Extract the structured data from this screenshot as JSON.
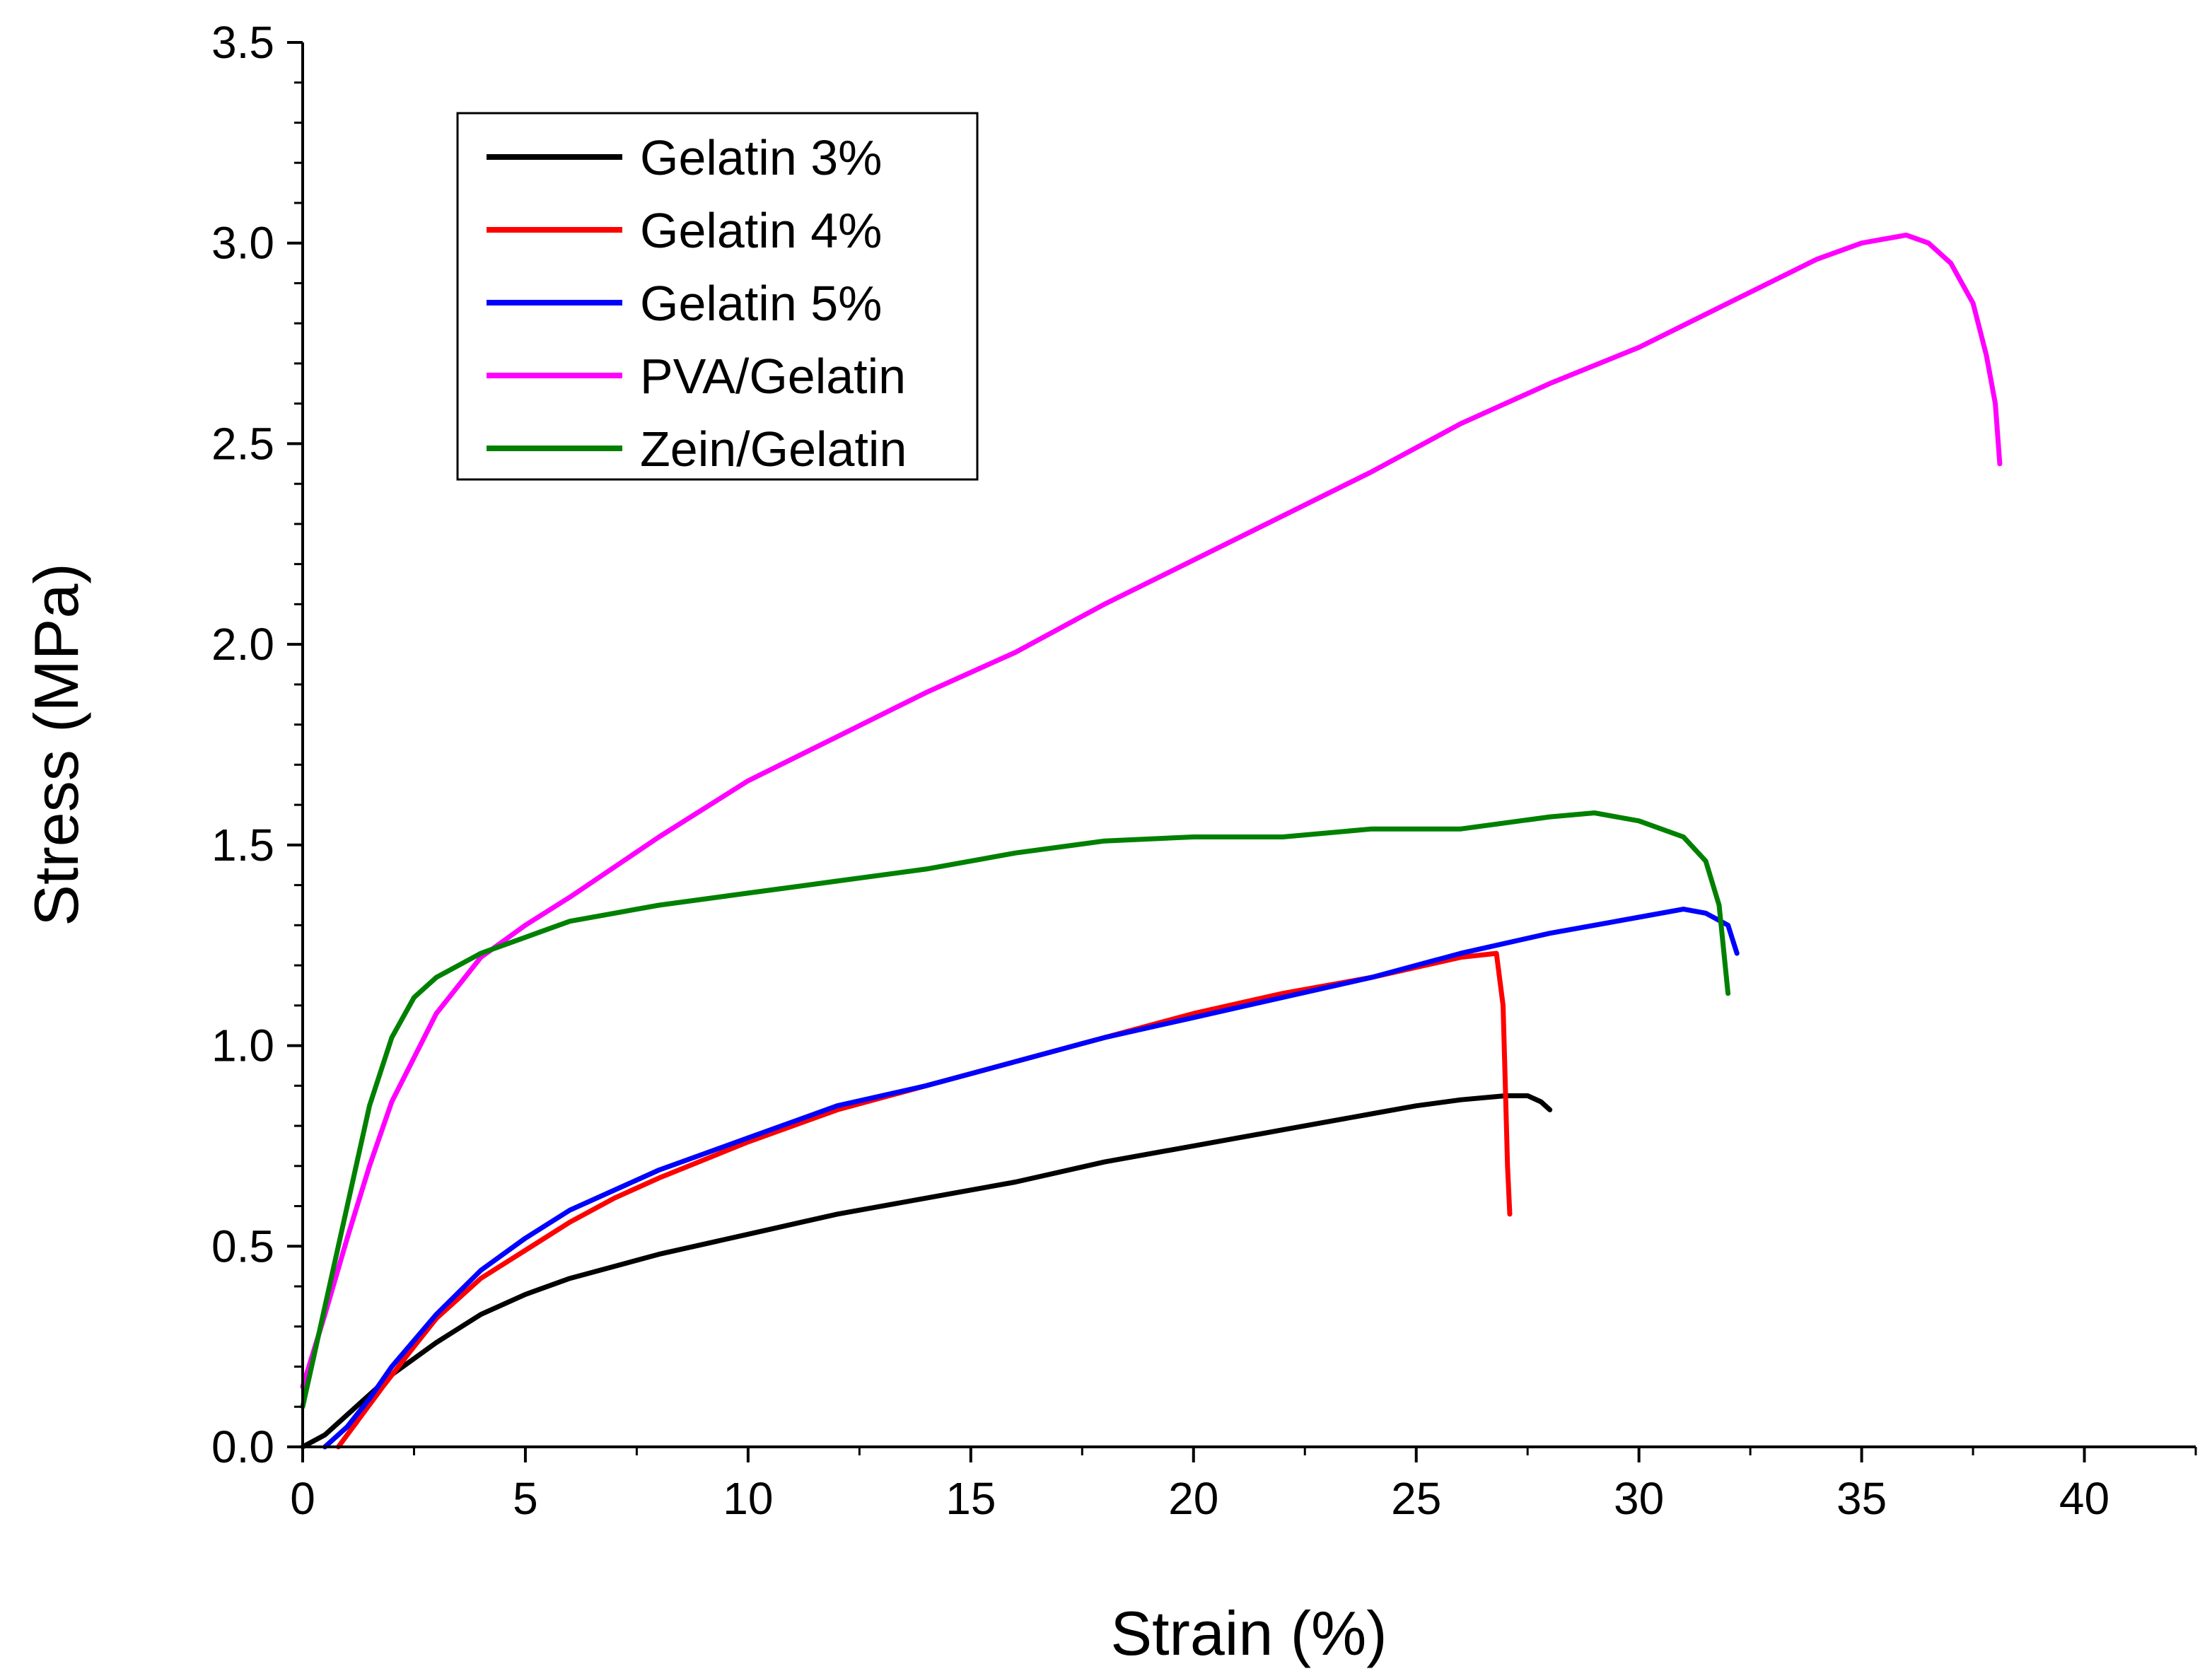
{
  "chart_data": {
    "type": "line",
    "title": "",
    "xlabel": "Strain (%)",
    "ylabel": "Stress (MPa)",
    "xlim": [
      0,
      42.5
    ],
    "ylim": [
      0,
      3.5
    ],
    "xticks": [
      0,
      5,
      10,
      15,
      20,
      25,
      30,
      35,
      40
    ],
    "xtick_labels": [
      "0",
      "5",
      "10",
      "15",
      "20",
      "25",
      "30",
      "35",
      "40"
    ],
    "yticks": [
      0,
      0.5,
      1.0,
      1.5,
      2.0,
      2.5,
      3.0,
      3.5
    ],
    "ytick_labels": [
      "0.0",
      "0.5",
      "1.0",
      "1.5",
      "2.0",
      "2.5",
      "3.0",
      "3.5"
    ],
    "grid": false,
    "legend_position": "top-left",
    "series": [
      {
        "name": "Gelatin 3%",
        "color": "#000000",
        "x": [
          0,
          0.5,
          1,
          1.5,
          2,
          3,
          4,
          5,
          6,
          8,
          10,
          12,
          14,
          16,
          18,
          20,
          22,
          24,
          25,
          26,
          27,
          27.5,
          27.8,
          28
        ],
        "y": [
          0,
          0.03,
          0.08,
          0.13,
          0.18,
          0.26,
          0.33,
          0.38,
          0.42,
          0.48,
          0.53,
          0.58,
          0.62,
          0.66,
          0.71,
          0.75,
          0.79,
          0.83,
          0.85,
          0.865,
          0.875,
          0.875,
          0.86,
          0.84
        ]
      },
      {
        "name": "Gelatin 4%",
        "color": "#ff0000",
        "x": [
          0.8,
          1.2,
          1.8,
          2.5,
          3,
          4,
          5,
          6,
          7,
          8,
          10,
          12,
          14,
          16,
          18,
          20,
          22,
          24,
          26,
          26.8,
          26.95,
          27,
          27.05,
          27.1
        ],
        "y": [
          0,
          0.06,
          0.15,
          0.25,
          0.32,
          0.42,
          0.49,
          0.56,
          0.62,
          0.67,
          0.76,
          0.84,
          0.9,
          0.96,
          1.02,
          1.08,
          1.13,
          1.17,
          1.22,
          1.23,
          1.1,
          0.9,
          0.7,
          0.58
        ]
      },
      {
        "name": "Gelatin 5%",
        "color": "#0000ff",
        "x": [
          0.5,
          1,
          1.5,
          2,
          3,
          4,
          5,
          6,
          8,
          10,
          12,
          14,
          16,
          18,
          20,
          22,
          24,
          26,
          28,
          30,
          31,
          31.5,
          32,
          32.2
        ],
        "y": [
          0,
          0.05,
          0.12,
          0.2,
          0.33,
          0.44,
          0.52,
          0.59,
          0.69,
          0.77,
          0.85,
          0.9,
          0.96,
          1.02,
          1.07,
          1.12,
          1.17,
          1.23,
          1.28,
          1.32,
          1.34,
          1.33,
          1.3,
          1.23
        ]
      },
      {
        "name": "PVA/Gelatin",
        "color": "#ff00ff",
        "x": [
          0,
          0.5,
          1,
          1.5,
          2,
          3,
          4,
          5,
          6,
          8,
          10,
          12,
          14,
          16,
          18,
          20,
          22,
          24,
          26,
          28,
          30,
          32,
          34,
          35,
          36,
          36.5,
          37,
          37.5,
          37.8,
          38,
          38.1
        ],
        "y": [
          0.15,
          0.33,
          0.52,
          0.7,
          0.86,
          1.08,
          1.22,
          1.3,
          1.37,
          1.52,
          1.66,
          1.77,
          1.88,
          1.98,
          2.1,
          2.21,
          2.32,
          2.43,
          2.55,
          2.65,
          2.74,
          2.85,
          2.96,
          3.0,
          3.02,
          3.0,
          2.95,
          2.85,
          2.72,
          2.6,
          2.45
        ]
      },
      {
        "name": "Zein/Gelatin",
        "color": "#008000",
        "x": [
          0,
          0.5,
          1,
          1.5,
          2,
          2.5,
          3,
          4,
          5,
          6,
          8,
          10,
          12,
          14,
          16,
          18,
          20,
          22,
          24,
          26,
          28,
          29,
          30,
          31,
          31.5,
          31.8,
          32
        ],
        "y": [
          0.1,
          0.35,
          0.6,
          0.85,
          1.02,
          1.12,
          1.17,
          1.23,
          1.27,
          1.31,
          1.35,
          1.38,
          1.41,
          1.44,
          1.48,
          1.51,
          1.52,
          1.52,
          1.54,
          1.54,
          1.57,
          1.58,
          1.56,
          1.52,
          1.46,
          1.35,
          1.13
        ]
      }
    ]
  }
}
